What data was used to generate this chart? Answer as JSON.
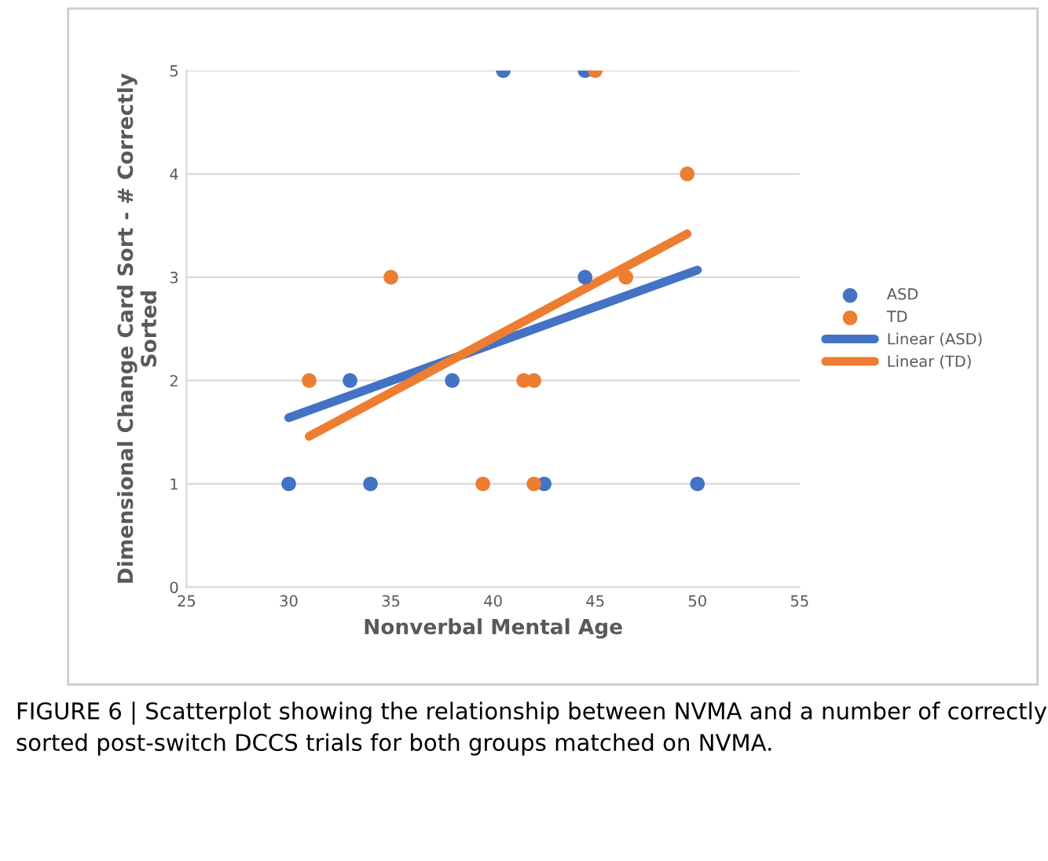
{
  "chart_data": {
    "type": "scatter",
    "xlabel": "Nonverbal Mental Age",
    "ylabel": "Dimensional Change Card Sort - # Correctly\nSorted",
    "xlim": [
      25,
      55
    ],
    "xticks": [
      25,
      30,
      35,
      40,
      45,
      50,
      55
    ],
    "ylim": [
      0,
      5
    ],
    "yticks": [
      0,
      1,
      2,
      3,
      4,
      5
    ],
    "grid": "y",
    "legend": "right",
    "series": [
      {
        "name": "ASD",
        "color": "#4472c4",
        "marker": "circle",
        "x": [
          30,
          33,
          34,
          38,
          40.5,
          42.5,
          44.5,
          44.5,
          50
        ],
        "values": [
          1,
          2,
          1,
          2,
          5,
          1,
          5,
          3,
          1
        ]
      },
      {
        "name": "TD",
        "color": "#ed7d31",
        "marker": "circle",
        "x": [
          31,
          35,
          39.5,
          41.5,
          42,
          42,
          45,
          46.5,
          49.5
        ],
        "values": [
          2,
          3,
          1,
          2,
          2,
          1,
          5,
          3,
          4
        ]
      },
      {
        "name": "Linear (ASD)",
        "color": "#4472c4",
        "type": "line",
        "marker": "none",
        "x": [
          30,
          50
        ],
        "values": [
          1.64,
          3.07
        ]
      },
      {
        "name": "Linear (TD)",
        "color": "#ed7d31",
        "type": "line",
        "marker": "none",
        "x": [
          31,
          49.5
        ],
        "values": [
          1.46,
          3.42
        ]
      }
    ],
    "annotations": [
      "FIGURE 6 | Scatterplot showing the relationship between NVMA and a number of correctly sorted post-switch DCCS trials for both groups matched on NVMA."
    ]
  }
}
